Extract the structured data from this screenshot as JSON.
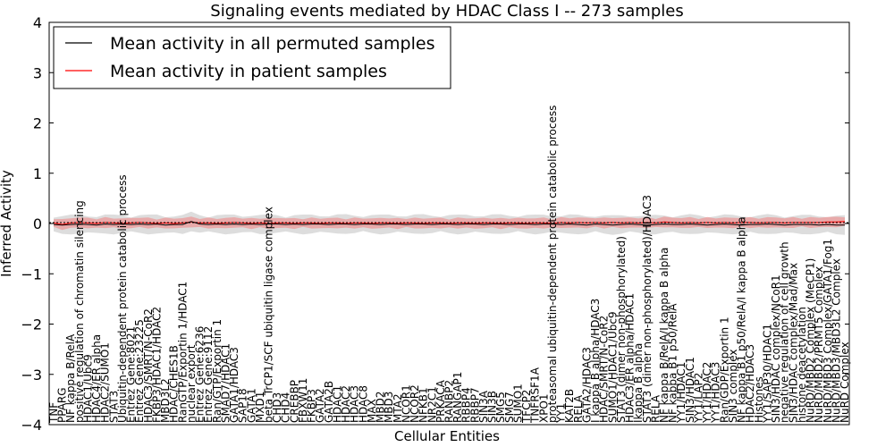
{
  "chart_data": {
    "type": "line",
    "title": "Signaling events mediated by HDAC Class I -- 273 samples",
    "xlabel": "Cellular Entities",
    "ylabel": "Inferred Activity",
    "ylim": [
      -4,
      4
    ],
    "yticks": [
      -4,
      -3,
      -2,
      -1,
      0,
      1,
      2,
      3,
      4
    ],
    "grid": false,
    "legend_position": "top-left",
    "legend": [
      {
        "label": "Mean activity in all permuted samples",
        "color": "#000000"
      },
      {
        "label": "Mean activity in patient samples",
        "color": "#ff0000"
      }
    ],
    "categories": [
      "TNF",
      "PPARG",
      "NF kappa B/RelA",
      "positive regulation of chromatin silencing",
      "HDAC1/Ubc9",
      "HDAC4/ER alpha",
      "HDAC2/SUMO1",
      "STAT3",
      "Ubiquitin-dependent protein catabolic process",
      "Entrez Gene:8021",
      "Entrez Gene:23225",
      "HDAC3/SMRT/N-CoR2",
      "FKBP3/HDAC1/HDAC2",
      "MBD3L2",
      "HDAC/CHES1B",
      "RanGTP/Exportin 1/HDAC1",
      "nuclear export",
      "Entrez Gene:6236",
      "Entrez Gene:9112",
      "Ran/GTP/Exportin 1",
      "SMAD7/HDAC1",
      "GATA1/HDAC3",
      "SAP18",
      "GATA1",
      "MXD1",
      "beta TrCP1/SCF ubiquitin ligase complex",
      "CHD3",
      "CHD4",
      "CREBBP",
      "FBXW11",
      "FKBP3",
      "GATA2",
      "GATA2B",
      "HDAC1",
      "HDAC2",
      "HDAC3",
      "HDAC8",
      "MAX",
      "MBD2",
      "MBD3",
      "MTA2",
      "NCOR1",
      "NCOR2",
      "NFKB1",
      "NR2C1",
      "PRKACA",
      "RANBP2",
      "RANGAP1",
      "RBBP4",
      "RBBP7",
      "SIN3A",
      "SIN3B",
      "SMG5",
      "SMG7",
      "SUMO1",
      "TFCP2",
      "TNFRSF1A",
      "XPO1",
      "proteasomal ubiquitin-dependent protein catabolic process",
      "YY1",
      "KAT2B",
      "RELA",
      "GATA2/HDAC3",
      "I kappa B alpha/HDAC3",
      "HDAC/SMRT/N-CoR2",
      "SUMO1/HDAC1/Ubc9",
      "STAT3 (dimer non-phosphorylated)",
      "HDAC3/ER alpha/HDAC1",
      "Ikappa B alpha",
      "STAT3 (dimer non-phosphorylated)/HDAC3",
      "RELA",
      "NF kappa B/RelA/I kappa B alpha",
      "NF kappa B1 p50/RelA",
      "YY1/HDAC1",
      "SIN3/HDAC1",
      "YY1/LAP2",
      "YY1/HDAC2",
      "YY1/HDAC3",
      "Ran/GDP/Exportin 1",
      "SIN3 complex",
      "NF kappa B1 p50/RelA/I kappa B alpha",
      "HDAC2/HDAC3",
      "Histones",
      "YY1/SAP30/HDAC1",
      "SIN3/HDAC complex/NCoR1",
      "negative regulation of cell growth",
      "SIN3/HDAC complex/Mad/Max",
      "histone deacetylation",
      "NuRD/MBD2 Complex (MeCP1)",
      "NuRD/MBD2/PRMT5 Complex",
      "NuRD/MBD3 Complex/GATA1/Fog1",
      "NuRD/MBD3/MBD3L2 Complex",
      "NuRD Complex"
    ],
    "series": [
      {
        "name": "Mean activity in all permuted samples",
        "values": [
          -0.02,
          -0.03,
          -0.02,
          -0.01,
          -0.02,
          -0.03,
          -0.01,
          -0.02,
          -0.01,
          -0.02,
          -0.01,
          -0.02,
          -0.01,
          -0.03,
          -0.02,
          -0.02,
          0.04,
          -0.01,
          -0.02,
          -0.01,
          -0.02,
          -0.01,
          -0.02,
          -0.01,
          -0.02,
          -0.01,
          -0.01,
          -0.02,
          -0.01,
          -0.02,
          -0.01,
          -0.01,
          -0.02,
          -0.01,
          -0.01,
          -0.02,
          -0.01,
          -0.01,
          -0.02,
          -0.01,
          -0.01,
          -0.02,
          -0.01,
          -0.01,
          -0.02,
          -0.01,
          -0.01,
          -0.02,
          -0.01,
          -0.01,
          -0.02,
          -0.01,
          -0.01,
          -0.02,
          -0.01,
          -0.01,
          -0.02,
          -0.01,
          -0.01,
          -0.02,
          -0.01,
          -0.02,
          -0.03,
          -0.01,
          -0.02,
          -0.03,
          -0.02,
          -0.01,
          -0.02,
          -0.03,
          -0.02,
          -0.01,
          -0.02,
          -0.02,
          -0.01,
          -0.02,
          -0.03,
          -0.02,
          -0.01,
          -0.02,
          -0.03,
          -0.02,
          -0.02,
          -0.01,
          -0.02,
          -0.03,
          -0.02,
          -0.02,
          -0.02,
          -0.03,
          -0.02,
          -0.03,
          -0.03
        ]
      },
      {
        "name": "Mean activity in patient samples",
        "values": [
          0.01,
          -0.02,
          0.01,
          0.02,
          0.01,
          0.0,
          0.02,
          0.01,
          0.0,
          0.01,
          0.02,
          0.01,
          0.0,
          0.01,
          0.0,
          0.01,
          0.03,
          0.01,
          0.01,
          0.0,
          0.01,
          0.02,
          0.01,
          0.0,
          0.01,
          0.0,
          0.01,
          0.01,
          0.0,
          0.01,
          0.01,
          0.0,
          0.01,
          0.01,
          0.0,
          0.01,
          0.01,
          0.0,
          0.01,
          0.01,
          0.0,
          0.01,
          0.01,
          0.0,
          0.01,
          0.01,
          0.0,
          0.01,
          0.01,
          0.0,
          0.01,
          0.01,
          0.0,
          0.01,
          0.01,
          0.0,
          0.01,
          0.01,
          0.0,
          0.02,
          0.01,
          0.02,
          0.01,
          0.02,
          0.01,
          0.02,
          0.01,
          0.02,
          0.01,
          0.02,
          0.01,
          0.03,
          0.02,
          0.01,
          0.02,
          0.01,
          0.02,
          0.01,
          0.02,
          0.01,
          0.02,
          0.02,
          0.01,
          0.02,
          0.02,
          0.01,
          0.02,
          0.02,
          0.02,
          0.02,
          0.03,
          0.03,
          0.04
        ]
      }
    ],
    "band_halfwidths": {
      "permuted_grey": 0.18,
      "patient_red": 0.1
    }
  }
}
